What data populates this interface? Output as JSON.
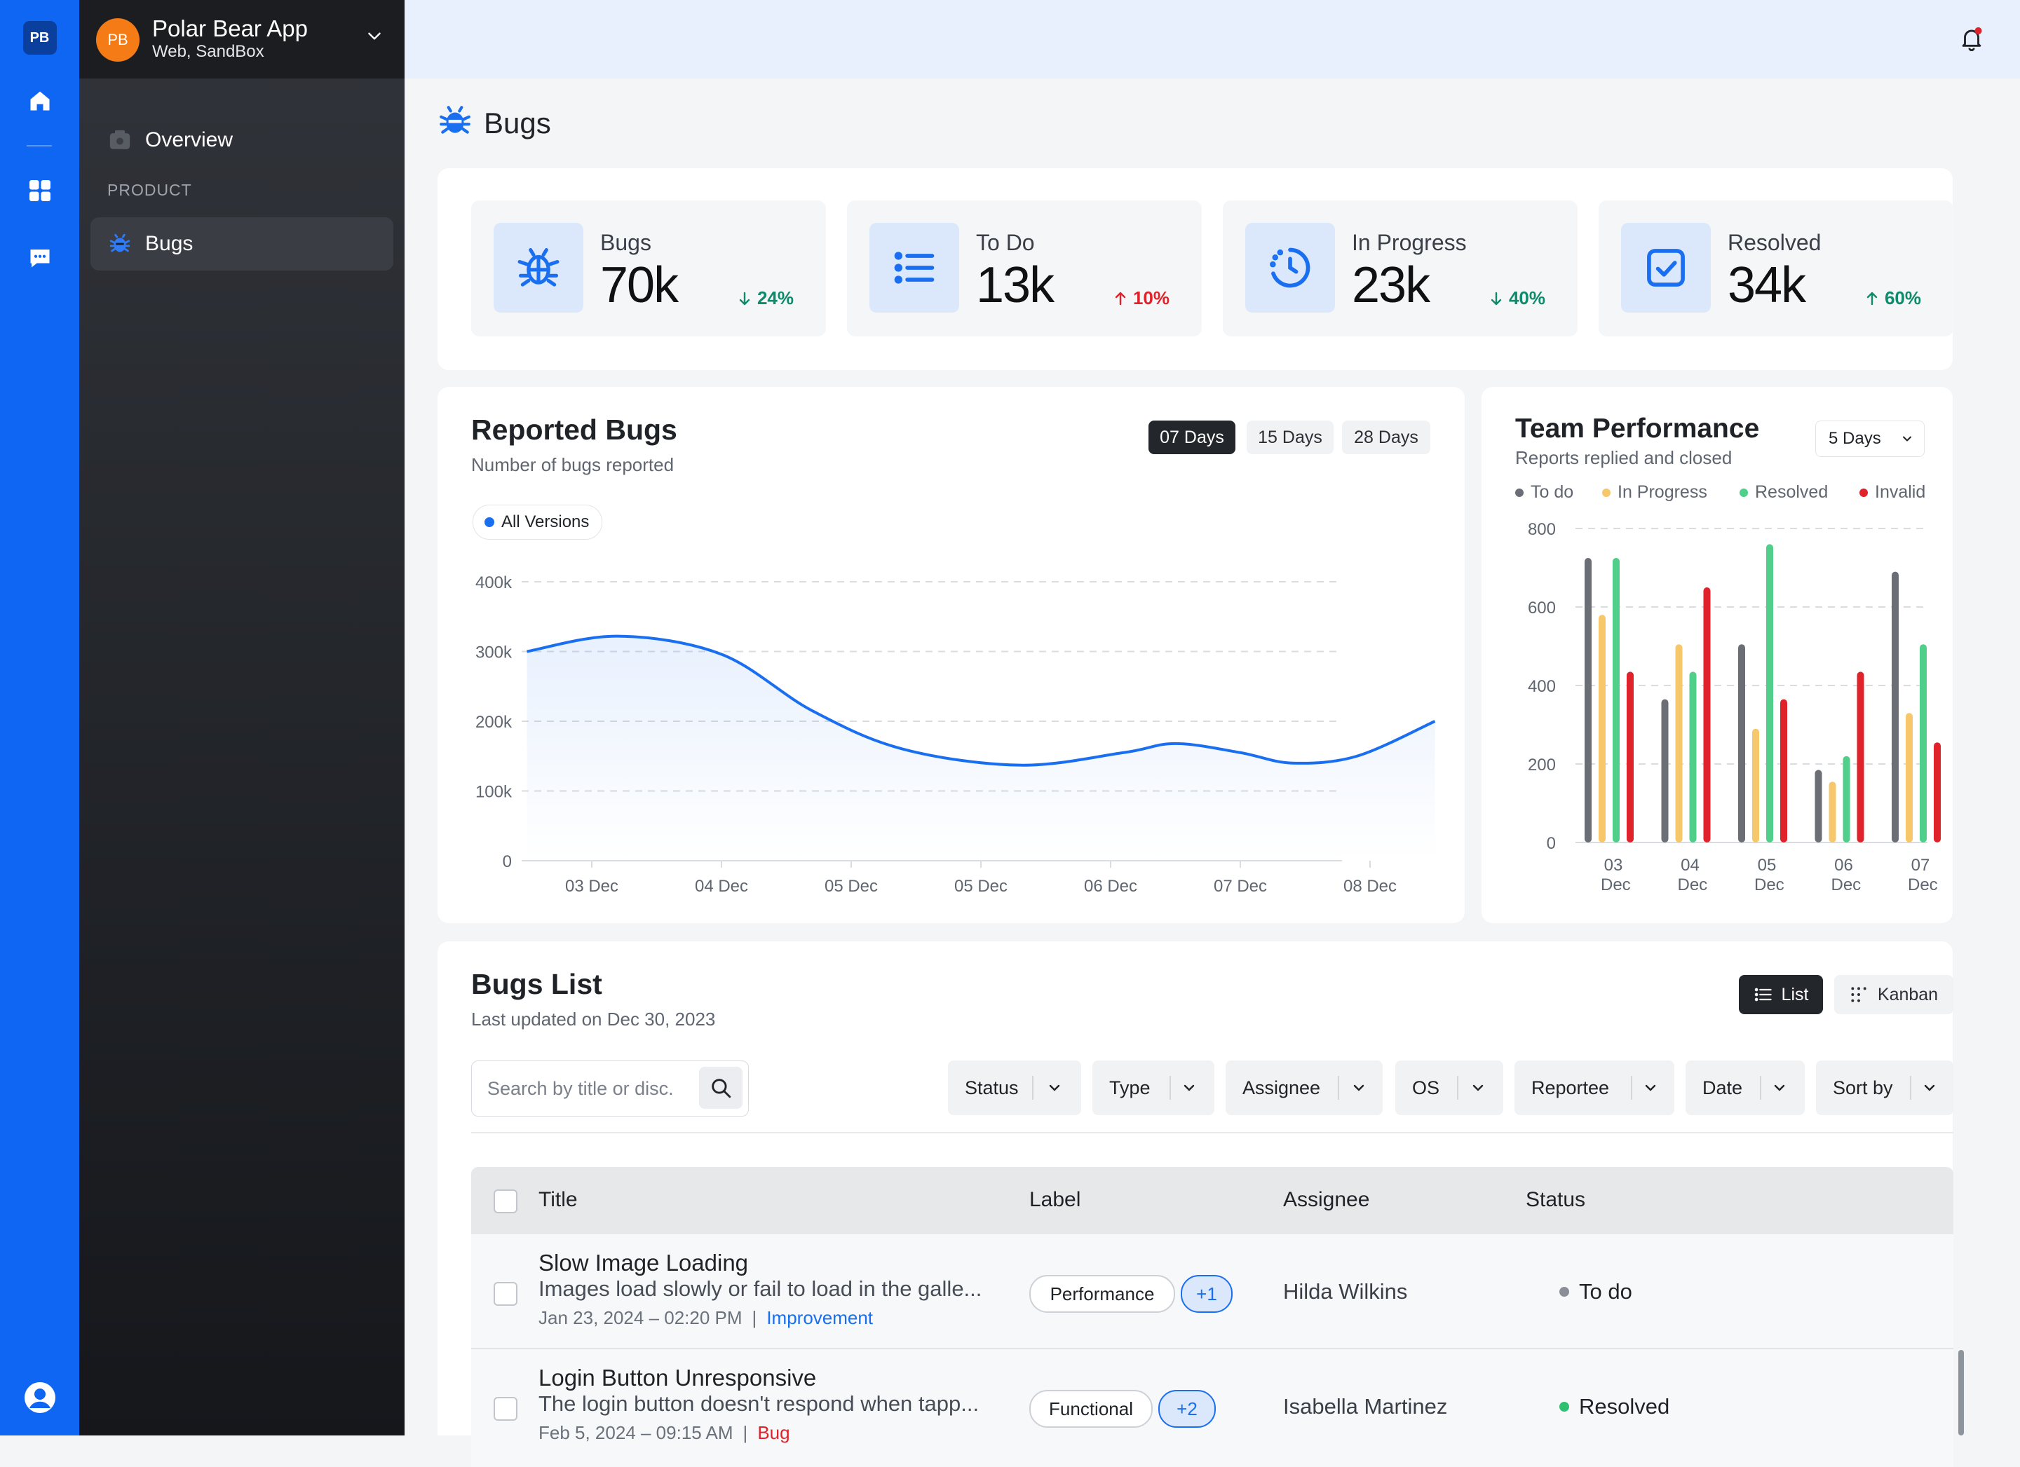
{
  "rail": {
    "logo": "PB",
    "icons": [
      "home-icon",
      "grid-icon",
      "chat-icon",
      "user-icon"
    ]
  },
  "sidebar": {
    "avatar": "PB",
    "app_name": "Polar Bear App",
    "app_env": "Web, SandBox",
    "overview": "Overview",
    "section": "PRODUCT",
    "bugs": "Bugs"
  },
  "page": {
    "title": "Bugs"
  },
  "stats": [
    {
      "label": "Bugs",
      "value": "70k",
      "trend": "24%",
      "direction": "down"
    },
    {
      "label": "To Do",
      "value": "13k",
      "trend": "10%",
      "direction": "up"
    },
    {
      "label": "In Progress",
      "value": "23k",
      "trend": "40%",
      "direction": "down"
    },
    {
      "label": "Resolved",
      "value": "34k",
      "trend": "60%",
      "direction": "up"
    }
  ],
  "reported": {
    "title": "Reported Bugs",
    "subtitle": "Number of bugs reported",
    "ranges": [
      "07 Days",
      "15 Days",
      "28 Days"
    ],
    "active_range": "07 Days",
    "filter_pill": "All Versions"
  },
  "team": {
    "title": "Team Performance",
    "subtitle": "Reports replied and closed",
    "select": "5 Days"
  },
  "chart_data": [
    {
      "type": "line",
      "x": [
        "03 Dec",
        "04 Dec",
        "05 Dec",
        "05 Dec",
        "06 Dec",
        "07 Dec",
        "08 Dec"
      ],
      "y_ticks": [
        "0",
        "100k",
        "200k",
        "300k",
        "400k"
      ],
      "ylim": [
        0,
        400000
      ],
      "series": [
        {
          "points": [
            [
              -0.5,
              300000
            ],
            [
              0.2,
              322000
            ],
            [
              1.0,
              296000
            ],
            [
              1.7,
              215000
            ],
            [
              2.4,
              160000
            ],
            [
              3.3,
              137000
            ],
            [
              4.1,
              155000
            ],
            [
              4.5,
              168000
            ],
            [
              5.0,
              155000
            ],
            [
              5.4,
              140000
            ],
            [
              5.9,
              150000
            ],
            [
              6.5,
              200000
            ]
          ]
        }
      ],
      "grid": true,
      "color": "#1a6ff0"
    },
    {
      "type": "bar",
      "categories": [
        "03 Dec",
        "04 Dec",
        "05 Dec",
        "06 Dec",
        "07 Dec"
      ],
      "y_ticks": [
        "0",
        "200",
        "400",
        "600",
        "800"
      ],
      "ylim": [
        0,
        800
      ],
      "series": [
        {
          "name": "To do",
          "color": "#6b6e74",
          "values": [
            725,
            365,
            505,
            185,
            690
          ]
        },
        {
          "name": "In Progress",
          "color": "#f7c86b",
          "values": [
            580,
            505,
            290,
            155,
            330
          ]
        },
        {
          "name": "Resolved",
          "color": "#4fcf8a",
          "values": [
            725,
            435,
            760,
            220,
            505
          ]
        },
        {
          "name": "Invalid",
          "color": "#e0222b",
          "values": [
            435,
            650,
            365,
            435,
            255
          ]
        }
      ],
      "legend": "top",
      "grid": true
    }
  ],
  "list": {
    "title": "Bugs List",
    "subtitle": "Last updated on Dec 30, 2023",
    "view_list": "List",
    "view_kanban": "Kanban",
    "search_placeholder": "Search by title or disc.",
    "filters": [
      "Status",
      "Type",
      "Assignee",
      "OS",
      "Reportee",
      "Date",
      "Sort by"
    ],
    "columns": [
      "Title",
      "Label",
      "Assignee",
      "Status"
    ],
    "rows": [
      {
        "title": "Slow Image Loading",
        "desc": "Images load slowly or fail to load in the galle...",
        "date": "Jan 23, 2024 – 02:20 PM",
        "type": "Improvement",
        "label": "Performance",
        "more": "+1",
        "assignee": "Hilda Wilkins",
        "status": "To do",
        "status_color": "#8a8f97"
      },
      {
        "title": "Login Button Unresponsive",
        "desc": "The login button doesn't respond when tapp...",
        "date": "Feb 5, 2024 – 09:15 AM",
        "type": "Bug",
        "label": "Functional",
        "more": "+2",
        "assignee": "Isabella Martinez",
        "status": "Resolved",
        "status_color": "#2fbf71"
      }
    ]
  }
}
